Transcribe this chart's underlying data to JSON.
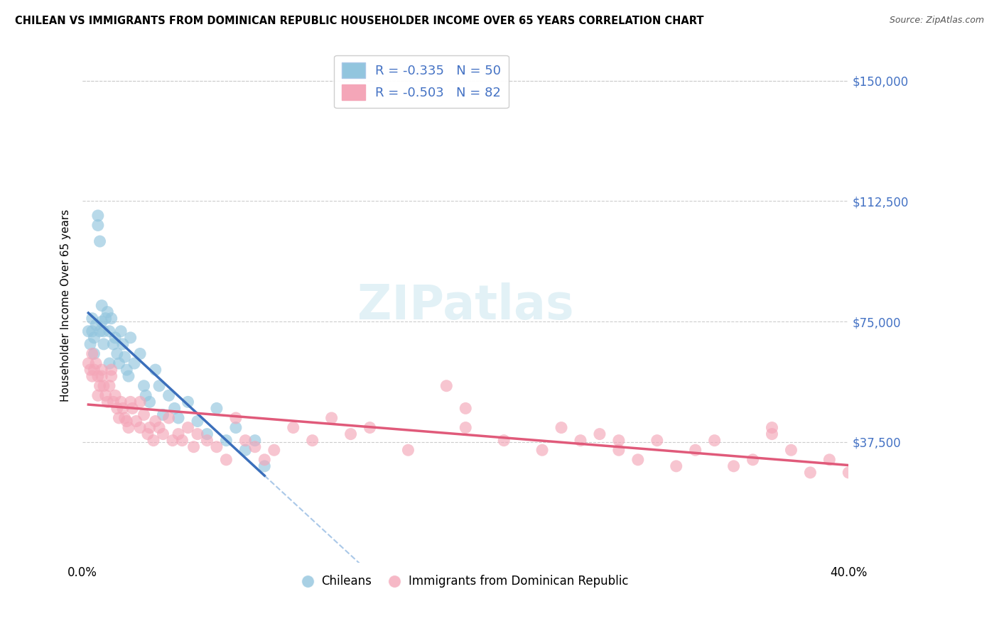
{
  "title": "CHILEAN VS IMMIGRANTS FROM DOMINICAN REPUBLIC HOUSEHOLDER INCOME OVER 65 YEARS CORRELATION CHART",
  "source": "Source: ZipAtlas.com",
  "ylabel": "Householder Income Over 65 years",
  "y_ticks": [
    0,
    37500,
    75000,
    112500,
    150000
  ],
  "y_tick_labels": [
    "",
    "$37,500",
    "$75,000",
    "$112,500",
    "$150,000"
  ],
  "x_min": 0.0,
  "x_max": 40.0,
  "y_min": 0,
  "y_max": 160000,
  "legend1_label": "R = -0.335   N = 50",
  "legend2_label": "R = -0.503   N = 82",
  "legend3_label": "Chileans",
  "legend4_label": "Immigrants from Dominican Republic",
  "color_blue": "#92c5de",
  "color_pink": "#f4a6b8",
  "color_line_blue": "#3b6fbb",
  "color_line_pink": "#e05a7a",
  "color_dashed": "#aac8e8",
  "blue_scatter_x": [
    0.3,
    0.4,
    0.5,
    0.5,
    0.6,
    0.7,
    0.8,
    0.8,
    0.9,
    1.0,
    1.0,
    1.1,
    1.2,
    1.3,
    1.4,
    1.5,
    1.6,
    1.7,
    1.8,
    1.9,
    2.0,
    2.1,
    2.2,
    2.3,
    2.5,
    2.7,
    3.0,
    3.2,
    3.5,
    3.8,
    4.0,
    4.5,
    4.8,
    5.0,
    5.5,
    6.0,
    6.5,
    7.0,
    7.5,
    8.0,
    8.5,
    9.0,
    9.5,
    0.6,
    0.9,
    1.1,
    1.4,
    2.4,
    3.3,
    4.2
  ],
  "blue_scatter_y": [
    72000,
    68000,
    76000,
    72000,
    70000,
    74000,
    108000,
    105000,
    100000,
    80000,
    75000,
    72000,
    76000,
    78000,
    72000,
    76000,
    68000,
    70000,
    65000,
    62000,
    72000,
    68000,
    64000,
    60000,
    70000,
    62000,
    65000,
    55000,
    50000,
    60000,
    55000,
    52000,
    48000,
    45000,
    50000,
    44000,
    40000,
    48000,
    38000,
    42000,
    35000,
    38000,
    30000,
    65000,
    72000,
    68000,
    62000,
    58000,
    52000,
    46000
  ],
  "pink_scatter_x": [
    0.3,
    0.4,
    0.5,
    0.5,
    0.6,
    0.7,
    0.8,
    0.8,
    0.9,
    1.0,
    1.0,
    1.1,
    1.2,
    1.3,
    1.4,
    1.5,
    1.5,
    1.6,
    1.7,
    1.8,
    1.9,
    2.0,
    2.1,
    2.2,
    2.3,
    2.4,
    2.5,
    2.6,
    2.8,
    3.0,
    3.0,
    3.2,
    3.4,
    3.5,
    3.7,
    3.8,
    4.0,
    4.2,
    4.5,
    4.7,
    5.0,
    5.2,
    5.5,
    5.8,
    6.0,
    6.5,
    7.0,
    7.5,
    8.0,
    8.5,
    9.0,
    9.5,
    10.0,
    11.0,
    12.0,
    13.0,
    14.0,
    15.0,
    17.0,
    19.0,
    20.0,
    22.0,
    24.0,
    25.0,
    26.0,
    27.0,
    28.0,
    29.0,
    30.0,
    31.0,
    32.0,
    33.0,
    34.0,
    35.0,
    36.0,
    37.0,
    38.0,
    39.0,
    40.0,
    20.0,
    28.0,
    36.0
  ],
  "pink_scatter_y": [
    62000,
    60000,
    65000,
    58000,
    60000,
    62000,
    58000,
    52000,
    55000,
    60000,
    58000,
    55000,
    52000,
    50000,
    55000,
    58000,
    60000,
    50000,
    52000,
    48000,
    45000,
    50000,
    48000,
    45000,
    44000,
    42000,
    50000,
    48000,
    44000,
    50000,
    42000,
    46000,
    40000,
    42000,
    38000,
    44000,
    42000,
    40000,
    45000,
    38000,
    40000,
    38000,
    42000,
    36000,
    40000,
    38000,
    36000,
    32000,
    45000,
    38000,
    36000,
    32000,
    35000,
    42000,
    38000,
    45000,
    40000,
    42000,
    35000,
    55000,
    42000,
    38000,
    35000,
    42000,
    38000,
    40000,
    35000,
    32000,
    38000,
    30000,
    35000,
    38000,
    30000,
    32000,
    40000,
    35000,
    28000,
    32000,
    28000,
    48000,
    38000,
    42000
  ]
}
